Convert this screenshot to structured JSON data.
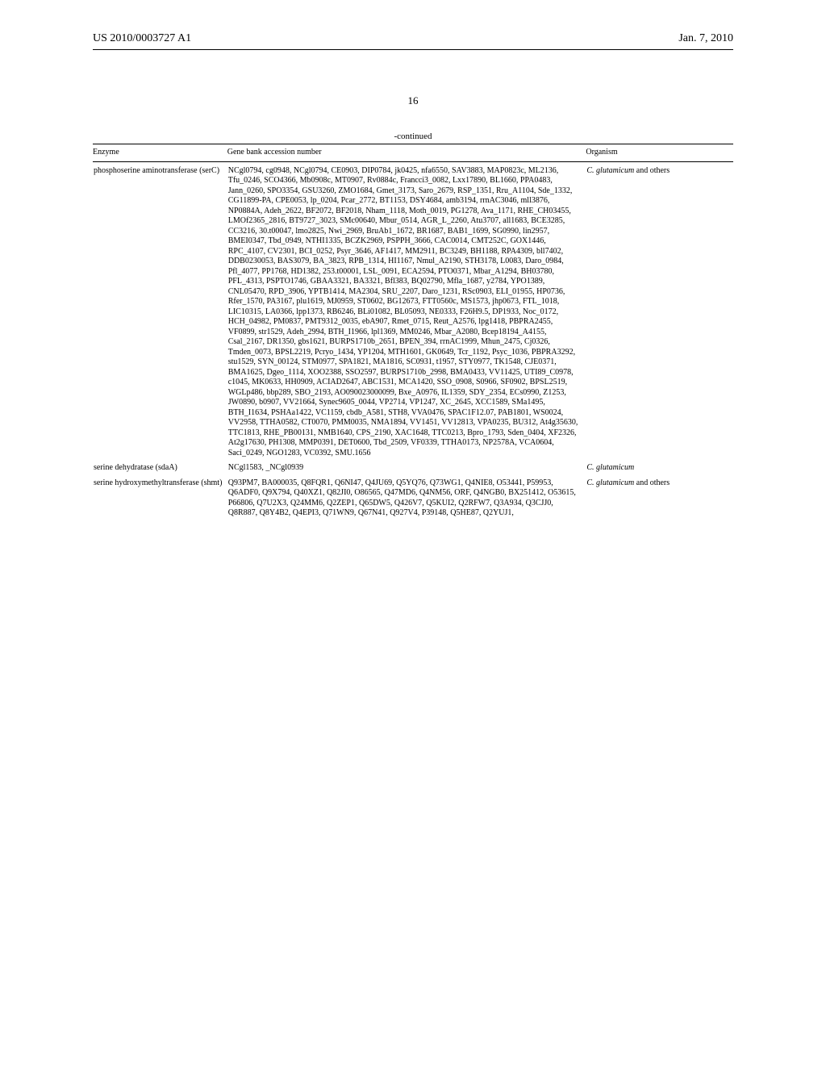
{
  "header": {
    "left": "US 2010/0003727 A1",
    "right": "Jan. 7, 2010"
  },
  "page_number": "16",
  "continued_label": "-continued",
  "table": {
    "headers": {
      "enzyme": "Enzyme",
      "genebank": "Gene bank accession number",
      "organism": "Organism"
    },
    "rows": [
      {
        "enzyme": "phosphoserine aminotransferase (serC)",
        "genebank": "NCgl0794, cg0948, NCgl0794, CE0903, DIP0784, jk0425, nfa6550, SAV3883, MAP0823c, ML2136, Tfu_0246, SCO4366, Mb0908c, MT0907, Rv0884c, Francci3_0082, Lxx17890, BL1660, PPA0483, Jann_0260, SPO3354, GSU3260, ZMO1684, Gmet_3173, Saro_2679, RSP_1351, Rru_A1104, Sde_1332, CG11899-PA, CPE0053, lp_0204, Pcar_2772, BT1153, DSY4684, amb3194, rrnAC3046, mll3876, NP0884A, Adeh_2622, BF2072, BF2018, Nham_1118, Moth_0019, PG1278, Ava_1171, RHE_CH03455, LMOf2365_2816, BT9727_3023, SMc00640, Mbur_0514, AGR_L_2260, Atu3707, all1683, BCE3285, CC3216, 30.t00047, lmo2825, Nwi_2969, BruAb1_1672, BR1687, BAB1_1699, SG0990, lin2957, BMEI0347, Tbd_0949, NTHI1335, BCZK2969, PSPPH_3666, CAC0014, CMT252C, GOX1446, RPC_4107, CV2301, BCI_0252, Psyr_3646, AF1417, MM2911, BC3249, BH1188, RPA4309, bll7402, DDB0230053, BAS3079, BA_3823, RPB_1314, HI1167, Nmul_A2190, STH3178, L0083, Daro_0984, Pfl_4077, PP1768, HD1382, 253.t00001, LSL_0091, ECA2594, PTO0371, Mbar_A1294, BH03780, PFL_4313, PSPTO1746, GBAA3321, BA3321, Bfl383, BQ02790, Mfla_1687, y2784, YPO1389, CNL05470, RPD_3906, YPTB1414, MA2304, SRU_2207, Daro_1231, RSc0903, ELI_01955, HP0736, Rfer_1570, PA3167, plu1619, MJ0959, ST0602, BG12673, FTT0560c, MS1573, jhp0673, FTL_1018, LIC10315, LA0366, lpp1373, RB6246, BLi01082, BL05093, NE0333, F26H9.5, DP1933, Noc_0172, HCH_04982, PM0837, PMT9312_0035, ebA907, Rmet_0715, Reut_A2576, lpg1418, PBPRA2455, VF0899, str1529, Adeh_2994, BTH_I1966, lpl1369, MM0246, Mbar_A2080, Bcep18194_A4155, Csal_2167, DR1350, gbs1621, BURPS1710b_2651, BPEN_394, rrnAC1999, Mhun_2475, Cj0326, Tmden_0073, BPSL2219, Pcryo_1434, YP1204, MTH1601, GK0649, Tcr_1192, Psyc_1036, PBPRA3292, stu1529, SYN_00124, STM0977, SPA1821, MA1816, SC0931, t1957, STY0977, TK1548, CJE0371, BMA1625, Dgeo_1114, XOO2388, SSO2597, BURPS1710b_2998, BMA0433, VV11425, UTI89_C0978, c1045, MK0633, HH0909, ACIAD2647, ABC1531, MCA1420, SSO_0908, S0966, SF0902, BPSL2519, WGLp486, bbp289, SBO_2193, AO090023000099, Bxe_A0976, IL1359, SDY_2354, ECs0990, Z1253, JW0890, b0907, VV21664, Synec9605_0044, VP2714, VP1247, XC_2645, XCC1589, SMa1495, BTH_I1634, PSHAa1422, VC1159, cbdb_A581, STH8, VVA0476, SPAC1F12.07, PAB1801, WS0024, VV2958, TTHA0582, CT0070, PMM0035, NMA1894, VV1451, VV12813, VPA0235, BU312, At4g35630, TTC1813, RHE_PB00131, NMB1640, CPS_2190, XAC1648, TTC0213, Bpro_1793, Sden_0404, XF2326, At2g17630, PH1308, MMP0391, DET0600, Tbd_2509, VF0339, TTHA0173, NP2578A, VCA0604, Saci_0249, NGO1283, VC0392, SMU.1656",
        "organism_prefix": "C. glutamicum",
        "organism_suffix": " and others"
      },
      {
        "enzyme": "serine dehydratase (sdaA)",
        "genebank": "NCgl1583, _NCgl0939",
        "organism_prefix": "C. glutamicum",
        "organism_suffix": ""
      },
      {
        "enzyme": "serine hydroxymethyltransferase (shmt)",
        "genebank": "Q93PM7, BA000035, Q8FQR1, Q6NI47, Q4JU69, Q5YQ76, Q73WG1, Q4NIE8, O53441, P59953, Q6ADF0, Q9X794, Q40XZ1, Q82JI0, O86565, Q47MD6, Q4NM56, ORF, Q4NGB0, BX251412, O53615, P66806, Q7U2X3, Q24MM6, Q2ZEP1, Q65DW5, Q426V7, Q5KUI2, Q2RFW7, Q3A934, Q3CJJ0, Q8R887, Q8Y4B2, Q4EPI3, Q71WN9, Q67N41, Q927V4, P39148, Q5HE87, Q2YUJ1,",
        "organism_prefix": "C. glutamicum",
        "organism_suffix": " and others"
      }
    ]
  }
}
